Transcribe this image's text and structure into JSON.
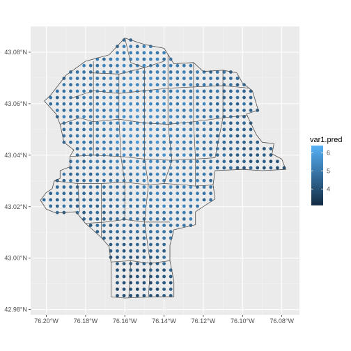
{
  "chart_data": {
    "type": "map-scatter",
    "title": "",
    "xlabel": "",
    "ylabel": "",
    "panel_background": "#ebebeb",
    "grid_major_color": "#ffffff",
    "border_color": "#4d4d4d",
    "x_ticks": [
      "76.20°W",
      "76.18°W",
      "76.16°W",
      "76.14°W",
      "76.12°W",
      "76.10°W",
      "76.08°W"
    ],
    "y_ticks": [
      "43.08°N",
      "43.06°N",
      "43.04°N",
      "43.02°N",
      "43.00°N",
      "42.98°N"
    ],
    "x_tick_values": [
      -76.2,
      -76.18,
      -76.16,
      -76.14,
      -76.12,
      -76.1,
      -76.08
    ],
    "y_tick_values": [
      43.08,
      43.06,
      43.04,
      43.02,
      43.0,
      42.98
    ],
    "xlim": [
      -76.208,
      -76.071
    ],
    "ylim": [
      42.978,
      43.09
    ],
    "point_spacing_deg": 0.0034,
    "legend": {
      "title": "var1.pred",
      "ticks": [
        "4",
        "5",
        "6"
      ],
      "tick_values": [
        4,
        5,
        6
      ],
      "range": [
        3.1,
        6.4
      ],
      "color_low": "#132b43",
      "color_high": "#56b1f7",
      "placement": "right"
    },
    "boundary_outline": [
      [
        -76.198,
        43.0632
      ],
      [
        -76.19,
        43.071
      ],
      [
        -76.18,
        43.0765
      ],
      [
        -76.168,
        43.079
      ],
      [
        -76.16,
        43.0855
      ],
      [
        -76.15,
        43.083
      ],
      [
        -76.14,
        43.0815
      ],
      [
        -76.135,
        43.0755
      ],
      [
        -76.125,
        43.076
      ],
      [
        -76.12,
        43.0725
      ],
      [
        -76.11,
        43.073
      ],
      [
        -76.103,
        43.072
      ],
      [
        -76.1,
        43.068
      ],
      [
        -76.095,
        43.065
      ],
      [
        -76.093,
        43.06
      ],
      [
        -76.092,
        43.0575
      ],
      [
        -76.098,
        43.056
      ],
      [
        -76.093,
        43.048
      ],
      [
        -76.09,
        43.045
      ],
      [
        -76.084,
        43.0445
      ],
      [
        -76.085,
        43.0405
      ],
      [
        -76.08,
        43.0385
      ],
      [
        -76.078,
        43.0345
      ],
      [
        -76.09,
        43.034
      ],
      [
        -76.1,
        43.0345
      ],
      [
        -76.114,
        43.034
      ],
      [
        -76.115,
        43.0285
      ],
      [
        -76.114,
        43.023
      ],
      [
        -76.12,
        43.02
      ],
      [
        -76.124,
        43.018
      ],
      [
        -76.124,
        43.013
      ],
      [
        -76.135,
        43.011
      ],
      [
        -76.137,
        43.005
      ],
      [
        -76.137,
        42.999
      ],
      [
        -76.135,
        42.991
      ],
      [
        -76.135,
        42.985
      ],
      [
        -76.145,
        42.985
      ],
      [
        -76.16,
        42.9845
      ],
      [
        -76.167,
        42.985
      ],
      [
        -76.167,
        42.998
      ],
      [
        -76.168,
        43.0045
      ],
      [
        -76.172,
        43.008
      ],
      [
        -76.18,
        43.0135
      ],
      [
        -76.185,
        43.018
      ],
      [
        -76.195,
        43.0175
      ],
      [
        -76.2,
        43.019
      ],
      [
        -76.203,
        43.0225
      ],
      [
        -76.2,
        43.0255
      ],
      [
        -76.197,
        43.027
      ],
      [
        -76.196,
        43.03
      ],
      [
        -76.193,
        43.031
      ],
      [
        -76.193,
        43.034
      ],
      [
        -76.188,
        43.0355
      ],
      [
        -76.188,
        43.0395
      ],
      [
        -76.186,
        43.042
      ],
      [
        -76.191,
        43.045
      ],
      [
        -76.193,
        43.052
      ],
      [
        -76.195,
        43.056
      ],
      [
        -76.201,
        43.061
      ],
      [
        -76.198,
        43.0632
      ]
    ],
    "neighborhood_lines": [
      [
        [
          -76.16,
          43.0855
        ],
        [
          -76.157,
          43.076
        ],
        [
          -76.15,
          43.074
        ],
        [
          -76.14,
          43.0765
        ]
      ],
      [
        [
          -76.178,
          43.072
        ],
        [
          -76.163,
          43.0715
        ],
        [
          -76.15,
          43.074
        ]
      ],
      [
        [
          -76.193,
          43.052
        ],
        [
          -76.183,
          43.0545
        ],
        [
          -76.176,
          43.053
        ],
        [
          -76.163,
          43.054
        ],
        [
          -76.15,
          43.0525
        ],
        [
          -76.138,
          43.052
        ],
        [
          -76.125,
          43.053
        ],
        [
          -76.11,
          43.0545
        ],
        [
          -76.093,
          43.056
        ]
      ],
      [
        [
          -76.188,
          43.0395
        ],
        [
          -76.176,
          43.04
        ],
        [
          -76.162,
          43.0395
        ],
        [
          -76.15,
          43.0385
        ],
        [
          -76.136,
          43.038
        ],
        [
          -76.124,
          43.0385
        ],
        [
          -76.114,
          43.039
        ]
      ],
      [
        [
          -76.196,
          43.03
        ],
        [
          -76.184,
          43.029
        ],
        [
          -76.172,
          43.029
        ],
        [
          -76.16,
          43.0295
        ],
        [
          -76.148,
          43.0285
        ],
        [
          -76.14,
          43.029
        ],
        [
          -76.13,
          43.0285
        ],
        [
          -76.124,
          43.028
        ],
        [
          -76.114,
          43.0285
        ]
      ],
      [
        [
          -76.18,
          43.0135
        ],
        [
          -76.17,
          43.014
        ],
        [
          -76.16,
          43.015
        ],
        [
          -76.15,
          43.014
        ],
        [
          -76.137,
          43.014
        ]
      ],
      [
        [
          -76.167,
          42.9985
        ],
        [
          -76.157,
          42.999
        ],
        [
          -76.147,
          42.998
        ],
        [
          -76.137,
          42.999
        ]
      ],
      [
        [
          -76.176,
          43.0765
        ],
        [
          -76.176,
          43.04
        ]
      ],
      [
        [
          -76.163,
          43.0715
        ],
        [
          -76.163,
          43.054
        ],
        [
          -76.162,
          43.0395
        ],
        [
          -76.16,
          43.0295
        ],
        [
          -76.16,
          43.015
        ]
      ],
      [
        [
          -76.15,
          43.074
        ],
        [
          -76.15,
          43.0525
        ],
        [
          -76.15,
          43.0385
        ],
        [
          -76.148,
          43.0285
        ],
        [
          -76.15,
          43.014
        ],
        [
          -76.147,
          42.998
        ],
        [
          -76.148,
          42.9845
        ]
      ],
      [
        [
          -76.138,
          43.08
        ],
        [
          -76.138,
          43.052
        ],
        [
          -76.136,
          43.038
        ],
        [
          -76.14,
          43.029
        ]
      ],
      [
        [
          -76.125,
          43.076
        ],
        [
          -76.125,
          43.053
        ],
        [
          -76.124,
          43.0385
        ],
        [
          -76.124,
          43.028
        ]
      ],
      [
        [
          -76.11,
          43.073
        ],
        [
          -76.11,
          43.0545
        ],
        [
          -76.114,
          43.039
        ]
      ],
      [
        [
          -76.157,
          42.999
        ],
        [
          -76.158,
          42.9845
        ]
      ],
      [
        [
          -76.184,
          43.029
        ],
        [
          -76.183,
          43.018
        ]
      ],
      [
        [
          -76.172,
          43.029
        ],
        [
          -76.172,
          43.008
        ]
      ],
      [
        [
          -76.188,
          43.062
        ],
        [
          -76.176,
          43.065
        ],
        [
          -76.163,
          43.064
        ],
        [
          -76.15,
          43.065
        ],
        [
          -76.138,
          43.066
        ],
        [
          -76.125,
          43.0665
        ],
        [
          -76.11,
          43.067
        ],
        [
          -76.096,
          43.066
        ]
      ]
    ]
  }
}
